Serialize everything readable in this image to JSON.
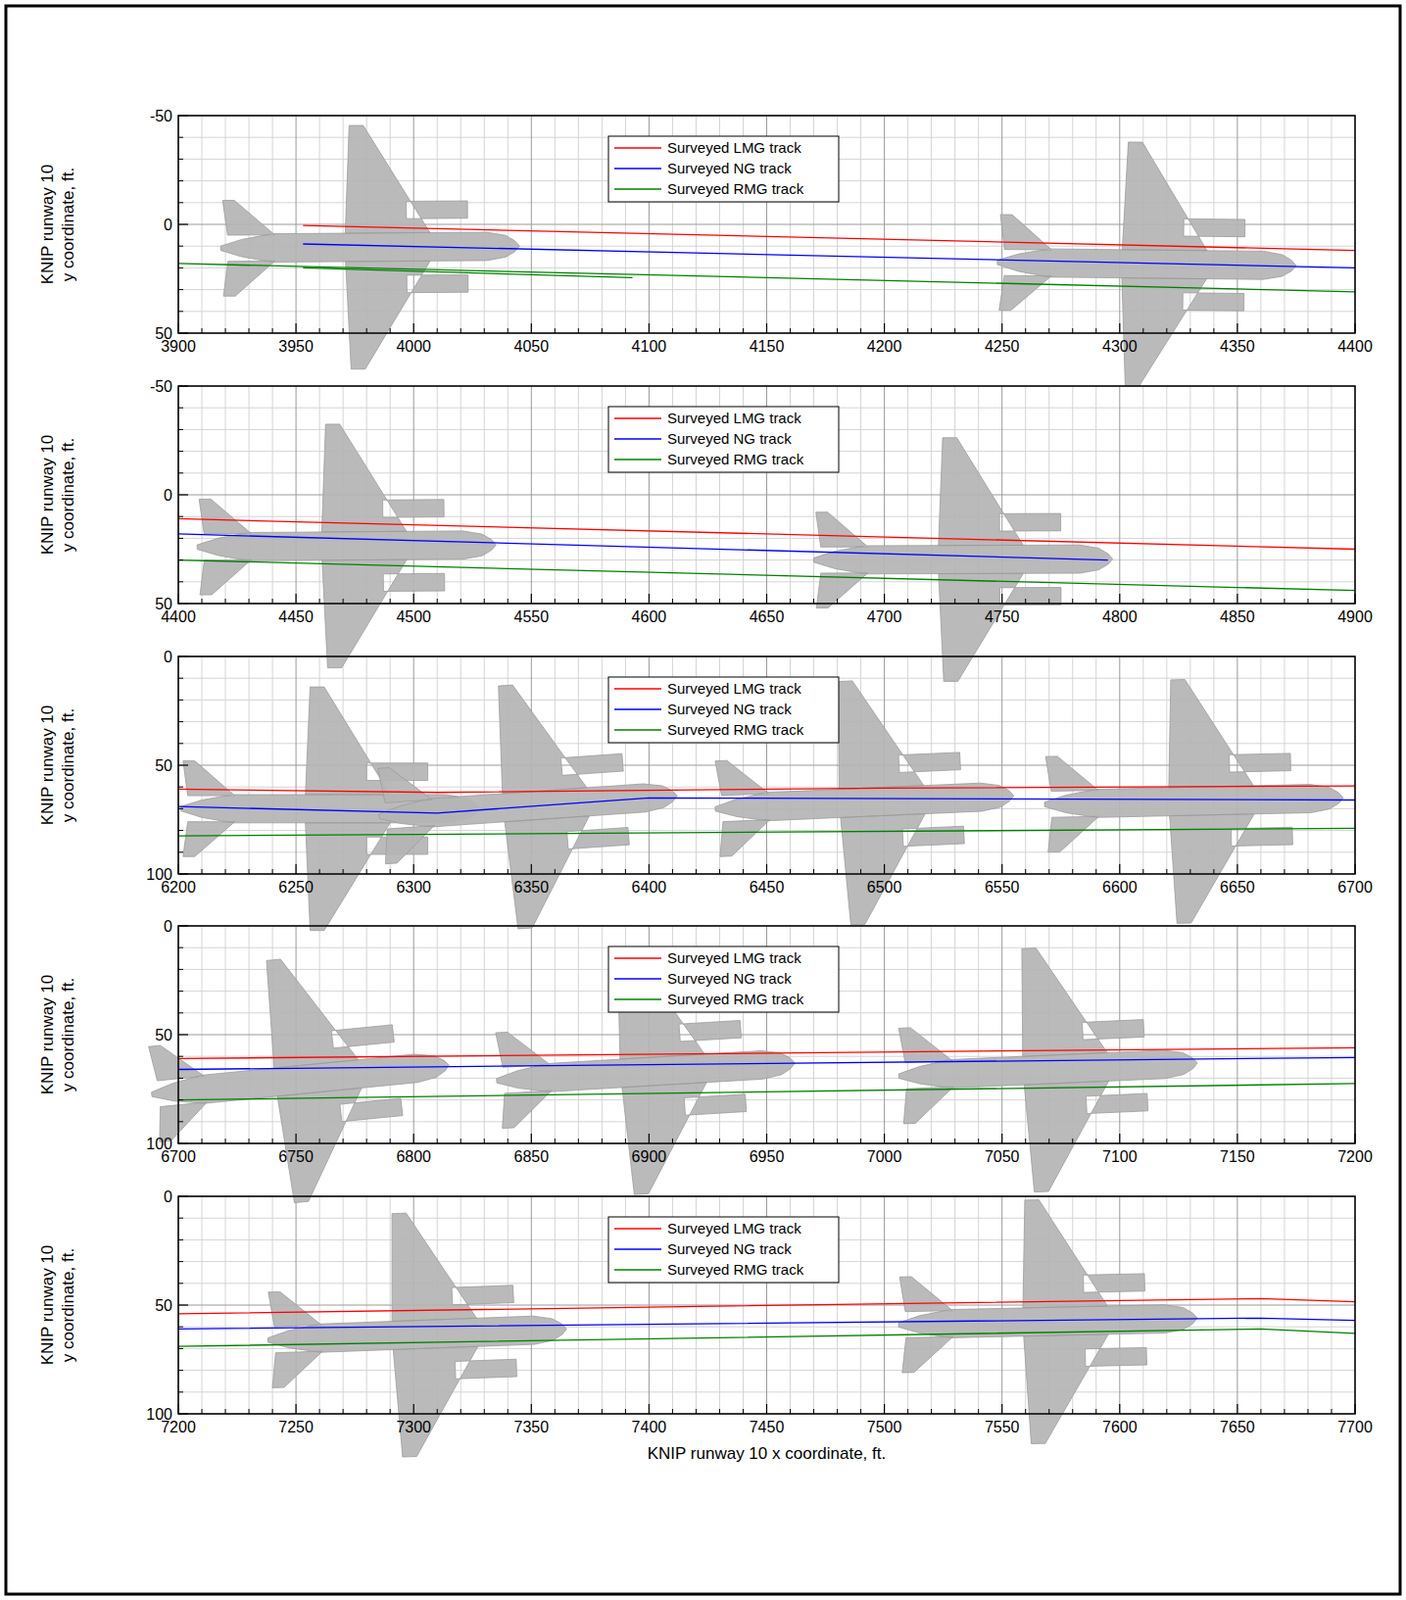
{
  "chart_data": [
    {
      "type": "line",
      "y_label": "KNIP runway 10\ny coordinate, ft.",
      "xlim": [
        3900,
        4400
      ],
      "ylim": [
        50,
        -50
      ],
      "xticks": [
        3900,
        3950,
        4000,
        4050,
        4100,
        4150,
        4200,
        4250,
        4300,
        4350,
        4400
      ],
      "yticks": [
        -50,
        0,
        50
      ],
      "grid": true,
      "legend": "top",
      "series": [
        {
          "name": "Surveyed LMG track",
          "color": "#ff0000",
          "x": [
            3953,
            4400
          ],
          "values": [
            0.5,
            12
          ]
        },
        {
          "name": "Surveyed NG track",
          "color": "#0000ff",
          "x": [
            3953,
            4400
          ],
          "values": [
            9,
            20
          ]
        },
        {
          "name": "Surveyed RMG track",
          "color": "#008000",
          "x": [
            3900,
            4400,
            null,
            3953,
            4093
          ],
          "values": [
            18,
            31,
            null,
            20,
            24.5
          ]
        }
      ],
      "aircraft": [
        {
          "x": 4045,
          "y": 10,
          "tail_x": 3918,
          "tail_y": 11
        },
        {
          "x": 4375,
          "y": 19,
          "tail_x": 4250,
          "tail_y": 17.5
        }
      ]
    },
    {
      "type": "line",
      "y_label": "KNIP runway 10\ny coordinate, ft.",
      "xlim": [
        4400,
        4900
      ],
      "ylim": [
        50,
        -50
      ],
      "xticks": [
        4400,
        4450,
        4500,
        4550,
        4600,
        4650,
        4700,
        4750,
        4800,
        4850,
        4900
      ],
      "yticks": [
        -50,
        0,
        50
      ],
      "grid": true,
      "legend": "top",
      "series": [
        {
          "name": "Surveyed LMG track",
          "color": "#ff0000",
          "x": [
            4400,
            4900
          ],
          "values": [
            11,
            25
          ]
        },
        {
          "name": "Surveyed NG track",
          "color": "#0000ff",
          "x": [
            4400,
            4795
          ],
          "values": [
            18,
            30
          ]
        },
        {
          "name": "Surveyed RMG track",
          "color": "#008000",
          "x": [
            4400,
            4900
          ],
          "values": [
            30,
            44
          ]
        }
      ],
      "aircraft": [
        {
          "x": 4535,
          "y": 23,
          "tail_x": 4410,
          "tail_y": 24
        },
        {
          "x": 4797,
          "y": 29.5,
          "tail_x": 4670,
          "tail_y": 30
        }
      ]
    },
    {
      "type": "line",
      "y_label": "KNIP runway 10\ny coordinate, ft.",
      "xlim": [
        6200,
        6700
      ],
      "ylim": [
        100,
        0
      ],
      "xticks": [
        6200,
        6250,
        6300,
        6350,
        6400,
        6450,
        6500,
        6550,
        6600,
        6650,
        6700
      ],
      "yticks": [
        0,
        50,
        100
      ],
      "grid": true,
      "legend": "top",
      "series": [
        {
          "name": "Surveyed LMG track",
          "color": "#ff0000",
          "x": [
            6200,
            6310,
            6500,
            6700
          ],
          "values": [
            61,
            62.5,
            60.5,
            59.5
          ]
        },
        {
          "name": "Surveyed NG track",
          "color": "#0000ff",
          "x": [
            6200,
            6310,
            6400,
            6700
          ],
          "values": [
            69,
            72,
            65,
            66
          ]
        },
        {
          "name": "Surveyed RMG track",
          "color": "#008000",
          "x": [
            6200,
            6700
          ],
          "values": [
            82.5,
            79
          ]
        }
      ],
      "aircraft": [
        {
          "x": 6328,
          "y": 70,
          "tail_x": 6202,
          "tail_y": 70
        },
        {
          "x": 6412,
          "y": 64,
          "tail_x": 6292,
          "tail_y": 73
        },
        {
          "x": 6555,
          "y": 64,
          "tail_x": 6430,
          "tail_y": 70
        },
        {
          "x": 6695,
          "y": 65,
          "tail_x": 6570,
          "tail_y": 68
        }
      ]
    },
    {
      "type": "line",
      "y_label": "KNIP runway 10\ny coordinate, ft.",
      "xlim": [
        6700,
        7200
      ],
      "ylim": [
        100,
        0
      ],
      "xticks": [
        6700,
        6750,
        6800,
        6850,
        6900,
        6950,
        7000,
        7050,
        7100,
        7150,
        7200
      ],
      "yticks": [
        0,
        50,
        100
      ],
      "grid": true,
      "legend": "top",
      "series": [
        {
          "name": "Surveyed LMG track",
          "color": "#ff0000",
          "x": [
            6700,
            7200
          ],
          "values": [
            61,
            56
          ]
        },
        {
          "name": "Surveyed NG track",
          "color": "#0000ff",
          "x": [
            6700,
            7200
          ],
          "values": [
            66,
            60.5
          ]
        },
        {
          "name": "Surveyed RMG track",
          "color": "#008000",
          "x": [
            6700,
            7200
          ],
          "values": [
            80,
            72.5
          ]
        }
      ],
      "aircraft": [
        {
          "x": 6815,
          "y": 64,
          "tail_x": 6693,
          "tail_y": 77
        },
        {
          "x": 6962,
          "y": 63,
          "tail_x": 6838,
          "tail_y": 71
        },
        {
          "x": 7133,
          "y": 63,
          "tail_x": 7007,
          "tail_y": 69
        }
      ]
    },
    {
      "type": "line",
      "y_label": "KNIP runway 10\ny coordinate, ft.",
      "x_label": "KNIP runway 10 x coordinate, ft.",
      "xlim": [
        7200,
        7700
      ],
      "ylim": [
        100,
        0
      ],
      "xticks": [
        7200,
        7250,
        7300,
        7350,
        7400,
        7450,
        7500,
        7550,
        7600,
        7650,
        7700
      ],
      "yticks": [
        0,
        50,
        100
      ],
      "grid": true,
      "legend": "top",
      "series": [
        {
          "name": "Surveyed LMG track",
          "color": "#ff0000",
          "x": [
            7200,
            7660,
            7700
          ],
          "values": [
            54,
            47,
            48.5
          ]
        },
        {
          "name": "Surveyed NG track",
          "color": "#0000ff",
          "x": [
            7200,
            7660,
            7700
          ],
          "values": [
            61,
            56,
            57
          ]
        },
        {
          "name": "Surveyed RMG track",
          "color": "#008000",
          "x": [
            7200,
            7660,
            7700
          ],
          "values": [
            69,
            61,
            63
          ]
        }
      ],
      "aircraft": [
        {
          "x": 7365,
          "y": 61,
          "tail_x": 7240,
          "tail_y": 66
        },
        {
          "x": 7633,
          "y": 56,
          "tail_x": 7510,
          "tail_y": 59
        }
      ]
    }
  ]
}
